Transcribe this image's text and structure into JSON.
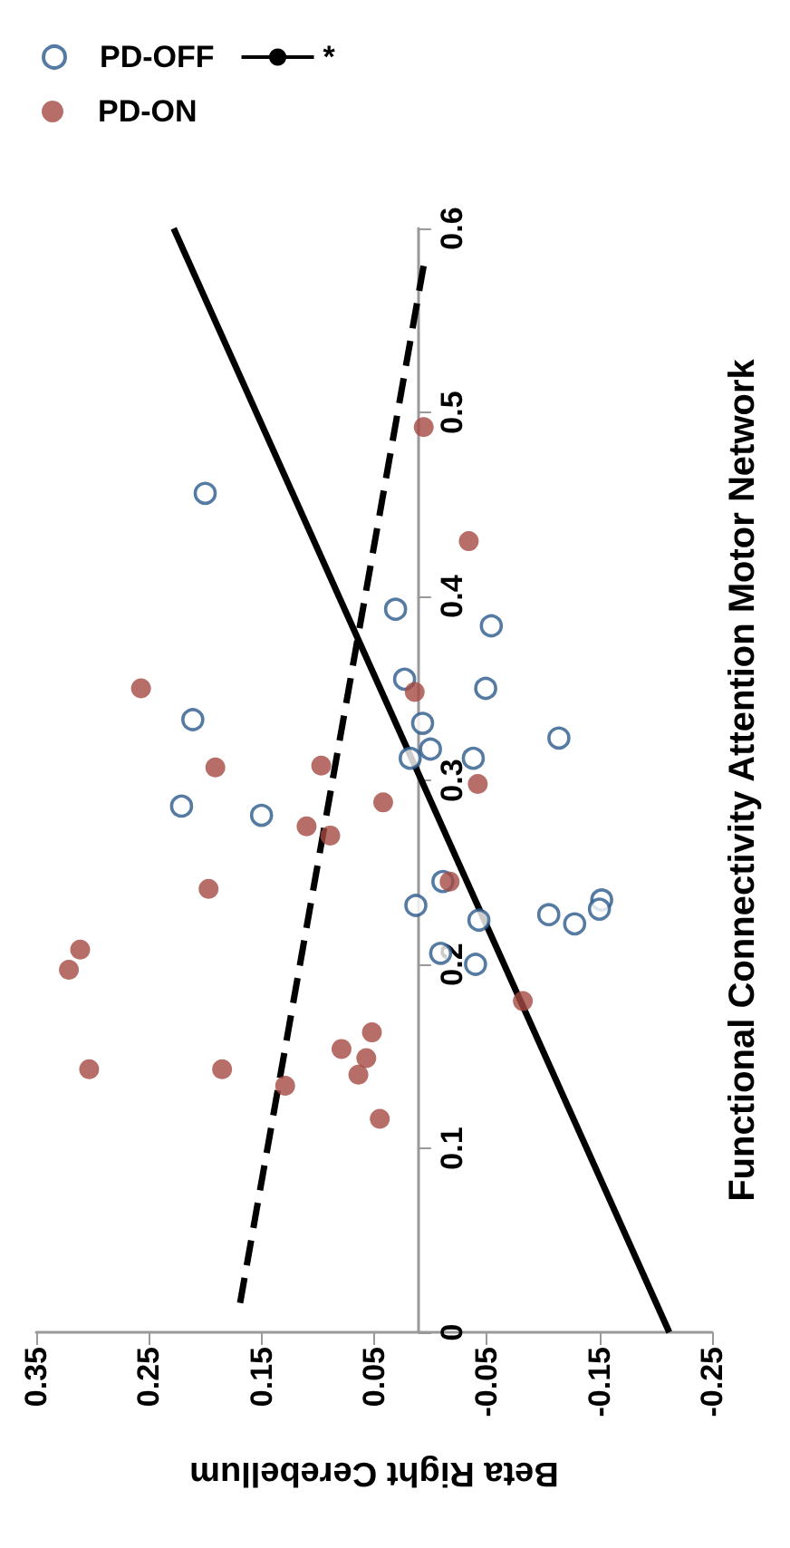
{
  "chart_data": {
    "type": "scatter",
    "xlabel": "Beta Right Cerebellum",
    "ylabel": "Functional Connectivity Attention Motor Network",
    "xlim": [
      0.35,
      -0.25
    ],
    "xticks": [
      0.35,
      0.25,
      0.15,
      0.05,
      -0.05,
      -0.15,
      -0.25
    ],
    "ylim": [
      0,
      0.6
    ],
    "yticks": [
      0,
      0.1,
      0.2,
      0.3,
      0.4,
      0.5,
      0.6
    ],
    "legend": "top left",
    "series": [
      {
        "name": "PD-OFF",
        "marker": "circle",
        "color": "#2a5a8c",
        "x": [
          0.2,
          0.031,
          -0.054,
          0.023,
          -0.049,
          0.211,
          0.007,
          -0.114,
          0.0,
          0.018,
          -0.038,
          0.221,
          0.15,
          -0.011,
          0.013,
          -0.043,
          -0.105,
          -0.128,
          -0.152,
          -0.15,
          -0.009,
          -0.04
        ],
        "values": [
          0.456,
          0.393,
          0.384,
          0.355,
          0.35,
          0.333,
          0.331,
          0.323,
          0.317,
          0.312,
          0.312,
          0.286,
          0.281,
          0.245,
          0.232,
          0.224,
          0.227,
          0.222,
          0.235,
          0.23,
          0.206,
          0.2
        ]
      },
      {
        "name": "*",
        "type": "line",
        "marker": "none",
        "line_style": "solid",
        "color": "#000000",
        "x": [
          -0.212,
          0.228
        ],
        "values": [
          0,
          0.6
        ]
      },
      {
        "name": "PD-ON",
        "marker": "circle",
        "color": "#a64a42",
        "x": [
          0.006,
          -0.034,
          0.014,
          0.257,
          0.191,
          0.097,
          -0.042,
          0.042,
          0.11,
          0.089,
          0.197,
          -0.017,
          0.311,
          0.321,
          -0.082,
          0.052,
          0.079,
          0.057,
          0.064,
          0.303,
          0.185,
          0.129,
          0.045
        ],
        "values": [
          0.492,
          0.43,
          0.348,
          0.35,
          0.307,
          0.308,
          0.298,
          0.288,
          0.275,
          0.27,
          0.241,
          0.245,
          0.208,
          0.197,
          0.18,
          0.163,
          0.154,
          0.149,
          0.14,
          0.143,
          0.143,
          0.134,
          0.116
        ]
      },
      {
        "type": "line",
        "marker": "none",
        "line_style": "dashed",
        "color": "#000000",
        "x": [
          0.169,
          0.006
        ],
        "values": [
          0.016,
          0.58
        ]
      }
    ]
  }
}
